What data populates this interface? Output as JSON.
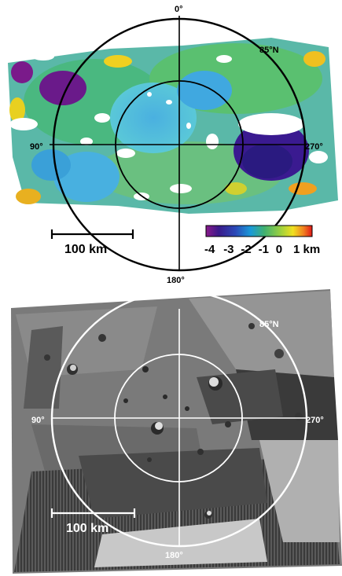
{
  "top_map": {
    "label_north": "0°",
    "label_west": "90°",
    "label_east": "270°",
    "label_south": "180°",
    "label_lat": "85°N",
    "scale_label": "100 km",
    "colorbar": {
      "stops": [
        "#7a1a7a",
        "#3a1a8a",
        "#2a3aa8",
        "#1a8ad8",
        "#44b8e0",
        "#4ab060",
        "#9ad040",
        "#f0e020",
        "#f09020",
        "#e02020"
      ],
      "tick_labels": [
        "-4",
        "-3",
        "-2",
        "-1",
        "0",
        "1 km"
      ]
    }
  },
  "bottom_map": {
    "label_west": "90°",
    "label_east": "270°",
    "label_south": "180°",
    "label_lat": "85°N",
    "scale_label": "100 km"
  }
}
